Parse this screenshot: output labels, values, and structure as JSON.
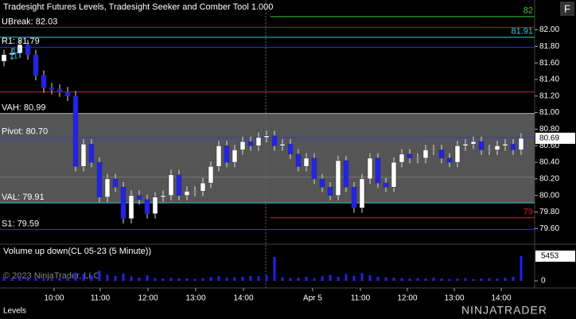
{
  "chart_data": {
    "type": "candlestick",
    "title": "Tradesight Futures Levels, Tradesight Seeker and Comber Tool 1.000",
    "volume_title": "Volume up down(CL 05-23 (5 Minute))",
    "copyright": "© 2023 NinjaTrader, LLC",
    "footer_tab": "Levels",
    "logo": "NINJATRADER",
    "button": "F",
    "annotations": [
      {
        "text": "12",
        "x": 3,
        "y": 81.74,
        "color": "#33ccff"
      },
      {
        "text": "11",
        "x": 2.4,
        "y": 81.68,
        "color": "#33ccff"
      }
    ],
    "up_color": "#ffffff",
    "down_color": "#2020ff",
    "x": [
      1,
      3,
      5,
      7,
      9,
      11,
      13,
      15,
      17,
      19,
      21,
      23,
      25,
      27,
      29,
      31,
      33,
      35,
      37,
      39,
      41,
      43,
      45,
      47,
      49,
      51,
      53,
      55,
      57,
      59,
      61,
      63,
      65,
      67,
      69,
      71,
      73,
      75,
      77,
      79,
      81,
      83,
      85,
      87,
      89,
      91,
      93,
      95,
      97,
      99,
      101,
      103,
      105,
      107,
      109,
      111,
      113,
      115,
      117,
      119,
      121,
      123,
      125,
      127,
      129,
      131
    ],
    "open": [
      81.62,
      81.7,
      81.72,
      81.82,
      81.7,
      81.45,
      81.3,
      81.28,
      81.25,
      81.2,
      80.35,
      80.62,
      80.4,
      79.98,
      80.2,
      80.1,
      79.72,
      80.0,
      79.95,
      79.78,
      79.98,
      80.0,
      80.25,
      80.0,
      80.05,
      80.05,
      80.15,
      80.35,
      80.6,
      80.4,
      80.55,
      80.65,
      80.6,
      80.7,
      80.72,
      80.6,
      80.62,
      80.5,
      80.35,
      80.45,
      80.2,
      80.1,
      80.0,
      80.42,
      80.1,
      79.85,
      80.2,
      80.45,
      80.15,
      80.1,
      80.4,
      80.5,
      80.45,
      80.45,
      80.55,
      80.55,
      80.45,
      80.4,
      80.6,
      80.62,
      80.65,
      80.55,
      80.55,
      80.6,
      80.62,
      80.55
    ],
    "high": [
      81.76,
      81.78,
      81.88,
      81.88,
      81.76,
      81.51,
      81.36,
      81.34,
      81.31,
      81.26,
      80.68,
      80.68,
      80.46,
      80.26,
      80.26,
      80.16,
      80.06,
      80.06,
      80.01,
      80.04,
      80.06,
      80.31,
      80.31,
      80.11,
      80.11,
      80.21,
      80.41,
      80.66,
      80.66,
      80.61,
      80.71,
      80.71,
      80.76,
      80.78,
      80.78,
      80.68,
      80.68,
      80.56,
      80.51,
      80.51,
      80.26,
      80.16,
      80.48,
      80.48,
      80.16,
      80.26,
      80.51,
      80.51,
      80.21,
      80.46,
      80.56,
      80.56,
      80.51,
      80.61,
      80.61,
      80.61,
      80.51,
      80.66,
      80.68,
      80.71,
      80.71,
      80.61,
      80.66,
      80.68,
      80.68,
      80.75
    ],
    "low": [
      81.56,
      81.64,
      81.66,
      81.64,
      81.39,
      81.24,
      81.22,
      81.19,
      81.14,
      80.29,
      80.29,
      80.34,
      79.92,
      79.92,
      80.04,
      79.66,
      79.66,
      79.89,
      79.72,
      79.72,
      79.92,
      79.94,
      79.94,
      79.94,
      79.99,
      79.99,
      80.09,
      80.29,
      80.34,
      80.34,
      80.49,
      80.54,
      80.54,
      80.64,
      80.54,
      80.54,
      80.44,
      80.29,
      80.29,
      80.14,
      80.04,
      79.94,
      79.94,
      80.04,
      79.79,
      79.79,
      80.14,
      80.09,
      80.04,
      80.04,
      80.34,
      80.39,
      80.39,
      80.39,
      80.49,
      80.39,
      80.34,
      80.34,
      80.54,
      80.56,
      80.49,
      80.49,
      80.49,
      80.54,
      80.49,
      80.49
    ],
    "close": [
      81.7,
      81.72,
      81.82,
      81.7,
      81.45,
      81.3,
      81.28,
      81.25,
      81.2,
      80.35,
      80.62,
      80.4,
      79.98,
      80.2,
      80.1,
      79.72,
      80.0,
      79.95,
      79.78,
      79.98,
      80.0,
      80.25,
      80.0,
      80.05,
      80.05,
      80.15,
      80.35,
      80.6,
      80.4,
      80.55,
      80.65,
      80.6,
      80.7,
      80.72,
      80.6,
      80.62,
      80.5,
      80.35,
      80.45,
      80.2,
      80.1,
      80.0,
      80.42,
      80.1,
      79.85,
      80.2,
      80.45,
      80.15,
      80.1,
      80.4,
      80.5,
      80.45,
      80.45,
      80.55,
      80.55,
      80.45,
      80.4,
      80.6,
      80.62,
      80.65,
      80.55,
      80.55,
      80.6,
      80.62,
      80.55,
      80.69
    ],
    "volume": [
      900,
      600,
      1100,
      700,
      800,
      500,
      400,
      600,
      500,
      1800,
      1500,
      1200,
      2200,
      1400,
      1100,
      1600,
      1000,
      700,
      1200,
      600,
      500,
      700,
      600,
      500,
      400,
      600,
      800,
      1000,
      700,
      800,
      900,
      1100,
      1000,
      1200,
      5300,
      800,
      600,
      700,
      900,
      600,
      1000,
      1300,
      900,
      1500,
      1100,
      1700,
      1200,
      900,
      800,
      700,
      600,
      500,
      600,
      500,
      700,
      500,
      400,
      500,
      600,
      400,
      500,
      600,
      500,
      700,
      900,
      5453
    ],
    "volume_color": "#2020ff",
    "xlim": [
      0,
      134.4
    ],
    "xticks": [
      {
        "value": 13.6,
        "label": "10:00"
      },
      {
        "value": 25.2,
        "label": "11:00"
      },
      {
        "value": 37.2,
        "label": "12:00"
      },
      {
        "value": 49.2,
        "label": "13:00"
      },
      {
        "value": 61.2,
        "label": "14:00"
      },
      {
        "value": 78.6,
        "label": "Apr 5"
      },
      {
        "value": 90.6,
        "label": "11:00"
      },
      {
        "value": 102.4,
        "label": "12:00"
      },
      {
        "value": 114.2,
        "label": "13:00"
      },
      {
        "value": 126,
        "label": "14:00"
      }
    ],
    "separators": [
      66.8
    ],
    "ylim": [
      79.43,
      82.36
    ],
    "yticks": [
      {
        "value": 79.6,
        "label": "79.60"
      },
      {
        "value": 79.8,
        "label": "79.80"
      },
      {
        "value": 80,
        "label": "80.00"
      },
      {
        "value": 80.2,
        "label": "80.20"
      },
      {
        "value": 80.4,
        "label": "80.40"
      },
      {
        "value": 80.6,
        "label": "80.60"
      },
      {
        "value": 80.8,
        "label": "80.80"
      },
      {
        "value": 81,
        "label": "81.00"
      },
      {
        "value": 81.2,
        "label": "81.20"
      },
      {
        "value": 81.4,
        "label": "81.40"
      },
      {
        "value": 81.6,
        "label": "81.60"
      },
      {
        "value": 81.8,
        "label": "81.80"
      },
      {
        "value": 82,
        "label": "82.00"
      }
    ],
    "vlim": [
      0,
      7560
    ],
    "vticks": [
      0
    ],
    "levels": [
      {
        "value": 82.16,
        "color": "#33cc33",
        "label": "82",
        "side": "right",
        "from": 68
      },
      {
        "value": 82.03,
        "color": "#aa2222",
        "label": "UBreak: 82.03",
        "side": "left",
        "from": 0
      },
      {
        "value": 81.91,
        "color": "#33cccc",
        "label": "81.91",
        "side": "right",
        "from": 0
      },
      {
        "value": 81.79,
        "color": "#3333cc",
        "label": "R1: 81.79",
        "side": "left",
        "from": 0
      },
      {
        "value": 81.25,
        "color": "#aa2255",
        "from": 0
      },
      {
        "value": 80.99,
        "color": "#aaaaaa",
        "label": "VAH: 80.99",
        "side": "left",
        "from": 0
      },
      {
        "value": 80.7,
        "color": "#3333ff",
        "label": "Pivot: 80.70",
        "side": "left",
        "from": 0
      },
      {
        "value": 80.22,
        "color": "#777777",
        "from": 0
      },
      {
        "value": 79.91,
        "color": "#33cccc",
        "label": "VAL: 79.91",
        "side": "left",
        "from": 0
      },
      {
        "value": 79.73,
        "color": "#cc2222",
        "label": "79",
        "side": "right",
        "from": 68
      },
      {
        "value": 79.59,
        "color": "#3333ff",
        "label": "S1: 79.59",
        "side": "left",
        "from": 0
      }
    ],
    "shade_between": [
      5,
      8
    ],
    "shade_color": "#555555"
  }
}
